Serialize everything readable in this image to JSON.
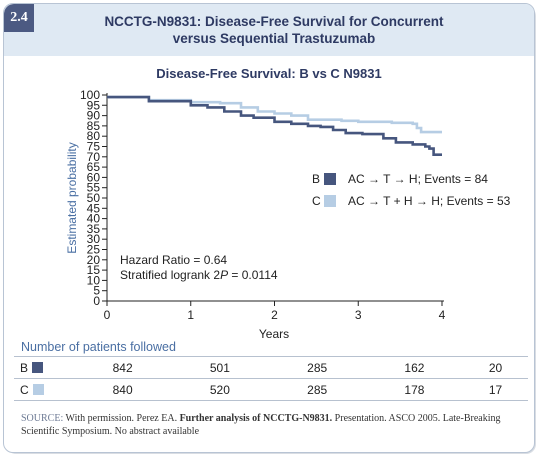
{
  "header": {
    "number": "2.4",
    "title_line1": "NCCTG-N9831: Disease-Free Survival for Concurrent",
    "title_line2": "versus Sequential Trastuzumab"
  },
  "colors": {
    "series_b": "#46567e",
    "series_c": "#b6cde4",
    "axis": "#222222",
    "header_bg": "#dfe9f3",
    "accent": "#4a6fa3"
  },
  "chart_data": {
    "type": "line",
    "title": "Disease-Free Survival: B vs C N9831",
    "xlabel": "Years",
    "ylabel": "Estimated probability",
    "xlim": [
      0,
      4
    ],
    "ylim": [
      0,
      100
    ],
    "xticks": [
      "0",
      "1",
      "2",
      "3",
      "4"
    ],
    "yticks": [
      "0",
      "5",
      "10",
      "15",
      "20",
      "25",
      "30",
      "35",
      "40",
      "45",
      "50",
      "55",
      "60",
      "65",
      "70",
      "75",
      "80",
      "85",
      "90",
      "95",
      "100"
    ],
    "grid": false,
    "legend_position": "right",
    "series": [
      {
        "name": "B",
        "legend_label": "AC → T → H; Events = 84",
        "x": [
          0,
          0.5,
          1.0,
          1.2,
          1.4,
          1.6,
          1.75,
          2.0,
          2.2,
          2.4,
          2.55,
          2.7,
          2.85,
          3.05,
          3.2,
          3.3,
          3.45,
          3.55,
          3.65,
          3.8,
          3.85,
          3.9,
          4.0
        ],
        "y": [
          99,
          97,
          95,
          94,
          92,
          90,
          89,
          87,
          86,
          85,
          84.5,
          83,
          81.5,
          81,
          81,
          79,
          77,
          77,
          76,
          75,
          74,
          71,
          71
        ]
      },
      {
        "name": "C",
        "legend_label": "AC → T + H → H; Events = 53",
        "x": [
          0,
          0.5,
          1.0,
          1.35,
          1.6,
          1.8,
          2.0,
          2.2,
          2.4,
          2.6,
          2.8,
          3.0,
          3.2,
          3.4,
          3.55,
          3.65,
          3.7,
          3.75,
          3.85,
          3.9,
          4.0
        ],
        "y": [
          99,
          97.5,
          96.5,
          96,
          94,
          92,
          91,
          90,
          88,
          88,
          87.5,
          87,
          87,
          86.5,
          86.5,
          86,
          84,
          82,
          82,
          82,
          82
        ]
      }
    ],
    "annotations": [
      "Hazard Ratio = 0.64",
      "Stratified logrank 2",
      "P",
      " = 0.0114"
    ]
  },
  "risk_table": {
    "title": "Number of patients followed",
    "rows": [
      {
        "label": "B",
        "values": [
          "842",
          "501",
          "285",
          "162",
          "20"
        ]
      },
      {
        "label": "C",
        "values": [
          "840",
          "520",
          "285",
          "178",
          "17"
        ]
      }
    ]
  },
  "source": {
    "label": "SOURCE:",
    "part1": " With permission. Perez EA. ",
    "bold": "Further analysis of NCCTG-N9831.",
    "part2": " Presentation. ASCO 2005. Late-Breaking Scientific Symposium. No abstract available"
  }
}
